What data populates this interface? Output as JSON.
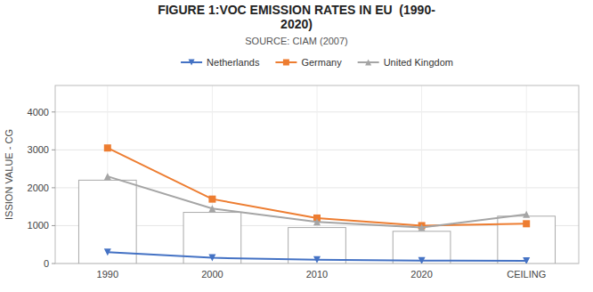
{
  "chart_data": {
    "type": "line",
    "title": [
      "FIGURE 1:VOC EMISSION RATES IN EU  (1990-",
      "2020)"
    ],
    "subtitle": "SOURCE: CIAM (2007)",
    "y_label": "ISSION VALUE - CG",
    "categories": [
      "1990",
      "2000",
      "2010",
      "2020",
      "CEILING"
    ],
    "series": [
      {
        "type": "bar",
        "color": "#FFFFFF",
        "values": [
          2200,
          1350,
          950,
          850,
          1250
        ]
      },
      {
        "name": "Netherlands",
        "type": "line",
        "color": "#4472C4",
        "marker": "triangle-down",
        "values": [
          300,
          150,
          100,
          75,
          70
        ]
      },
      {
        "name": "Germany",
        "type": "line",
        "color": "#ED7D31",
        "marker": "square",
        "values": [
          3050,
          1700,
          1200,
          1000,
          1050
        ]
      },
      {
        "name": "United Kingdom",
        "type": "line",
        "color": "#A5A5A5",
        "marker": "triangle-up",
        "values": [
          2300,
          1450,
          1100,
          950,
          1300
        ]
      }
    ],
    "ylim": [
      0,
      4700
    ],
    "yticks": [
      0,
      1000,
      2000,
      3000,
      4000
    ],
    "grid": true,
    "legend": "top"
  }
}
